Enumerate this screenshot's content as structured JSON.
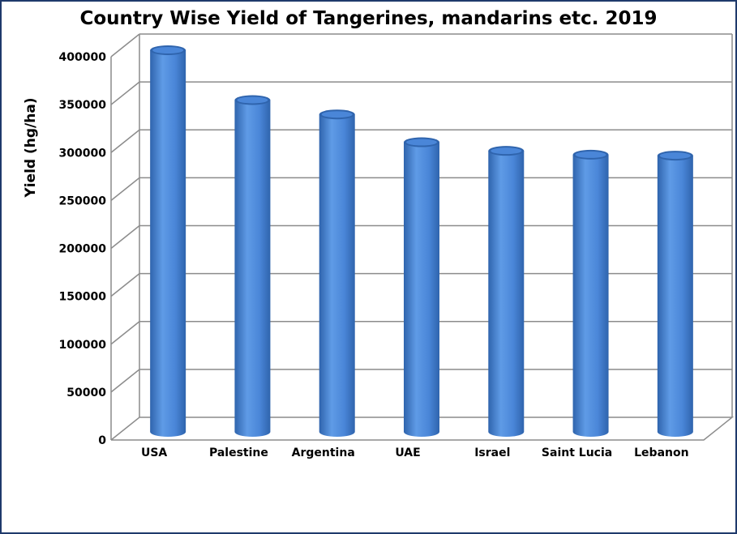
{
  "chart_data": {
    "type": "bar",
    "title": "Country Wise Yield of Tangerines, mandarins etc. 2019",
    "xlabel": "",
    "ylabel": "Yield (hg/ha)",
    "categories": [
      "USA",
      "Palestine",
      "Argentina",
      "UAE",
      "Israel",
      "Saint Lucia",
      "Lebanon"
    ],
    "values": [
      400000,
      348000,
      333000,
      304000,
      295000,
      291000,
      290000
    ],
    "ylim": [
      0,
      400000
    ],
    "yticks": [
      "0",
      "50000",
      "100000",
      "150000",
      "200000",
      "250000",
      "300000",
      "350000",
      "400000"
    ],
    "grid": true,
    "bar_color": "#4a86d8",
    "bar_shade": "#2f64ad",
    "bar_highlight": "#5f9be6",
    "frame_color": "#1f3a6b"
  }
}
